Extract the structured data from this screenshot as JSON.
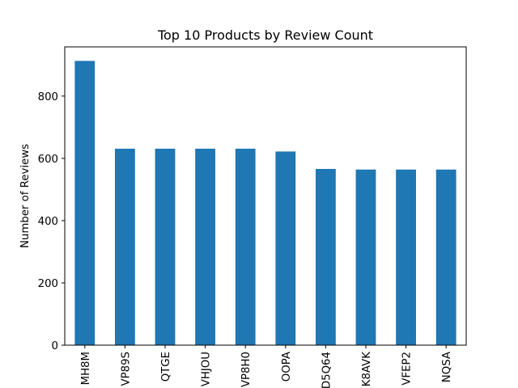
{
  "chart_data": {
    "type": "bar",
    "title": "Top 10 Products by Review Count",
    "xlabel": "",
    "ylabel": "Number of Reviews",
    "categories": [
      "MH8M",
      "VP89S",
      "QTGE",
      "VHJOU",
      "VP8H0",
      "OOPA",
      "D5Q64",
      "K8AVK",
      "VFEP2",
      "NQSA"
    ],
    "values": [
      913,
      631,
      631,
      631,
      631,
      622,
      566,
      564,
      564,
      564
    ],
    "ylim": [
      0,
      958
    ],
    "yticks": [
      0,
      200,
      400,
      600,
      800
    ],
    "bar_color": "#1f77b4",
    "grid": false,
    "legend": "none"
  }
}
